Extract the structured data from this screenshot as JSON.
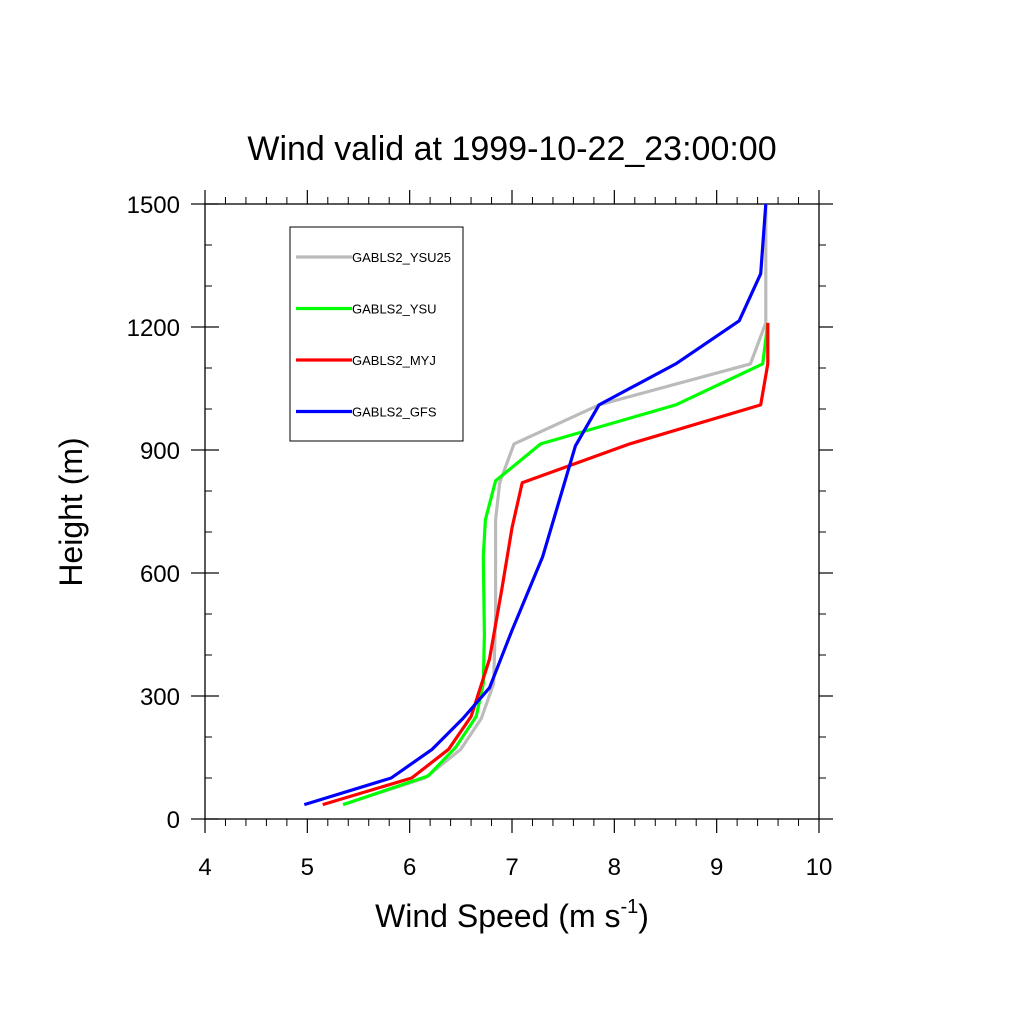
{
  "chart_data": {
    "type": "line",
    "title": "Wind valid at 1999-10-22_23:00:00",
    "xlabel": "Wind Speed (m s",
    "xlabel_superscript": "-1",
    "xlabel_suffix": ")",
    "ylabel": "Height (m)",
    "xlim": [
      4,
      10
    ],
    "ylim": [
      0,
      1500
    ],
    "x_ticks": [
      4,
      5,
      6,
      7,
      8,
      9,
      10
    ],
    "y_ticks": [
      0,
      300,
      600,
      900,
      1200,
      1500
    ],
    "grid": false,
    "legend_position": "top-left",
    "series": [
      {
        "name": "GABLS2_YSU25",
        "color": "#bbbbbb",
        "points": [
          [
            5.35,
            35
          ],
          [
            6.15,
            100
          ],
          [
            6.5,
            170
          ],
          [
            6.7,
            245
          ],
          [
            6.82,
            330
          ],
          [
            6.84,
            500
          ],
          [
            6.84,
            730
          ],
          [
            6.88,
            820
          ],
          [
            7.02,
            915
          ],
          [
            7.85,
            1010
          ],
          [
            9.33,
            1110
          ],
          [
            9.48,
            1210
          ],
          [
            9.48,
            1500
          ]
        ]
      },
      {
        "name": "GABLS2_YSU",
        "color": "#00ff00",
        "points": [
          [
            5.35,
            35
          ],
          [
            6.18,
            105
          ],
          [
            6.45,
            175
          ],
          [
            6.65,
            250
          ],
          [
            6.72,
            330
          ],
          [
            6.73,
            450
          ],
          [
            6.72,
            640
          ],
          [
            6.74,
            730
          ],
          [
            6.84,
            825
          ],
          [
            7.28,
            915
          ],
          [
            8.6,
            1010
          ],
          [
            9.45,
            1110
          ],
          [
            9.5,
            1210
          ]
        ]
      },
      {
        "name": "GABLS2_MYJ",
        "color": "#ff0000",
        "points": [
          [
            5.15,
            35
          ],
          [
            6.02,
            100
          ],
          [
            6.38,
            170
          ],
          [
            6.6,
            250
          ],
          [
            6.78,
            390
          ],
          [
            6.9,
            560
          ],
          [
            7.0,
            710
          ],
          [
            7.1,
            820
          ],
          [
            8.15,
            915
          ],
          [
            9.43,
            1010
          ],
          [
            9.5,
            1110
          ],
          [
            9.5,
            1210
          ]
        ]
      },
      {
        "name": "GABLS2_GFS",
        "color": "#0000ff",
        "points": [
          [
            4.97,
            35
          ],
          [
            5.82,
            100
          ],
          [
            6.22,
            170
          ],
          [
            6.52,
            245
          ],
          [
            6.78,
            320
          ],
          [
            7.0,
            460
          ],
          [
            7.3,
            640
          ],
          [
            7.62,
            910
          ],
          [
            7.85,
            1010
          ],
          [
            8.6,
            1110
          ],
          [
            9.22,
            1215
          ],
          [
            9.43,
            1330
          ],
          [
            9.48,
            1500
          ]
        ]
      }
    ]
  }
}
